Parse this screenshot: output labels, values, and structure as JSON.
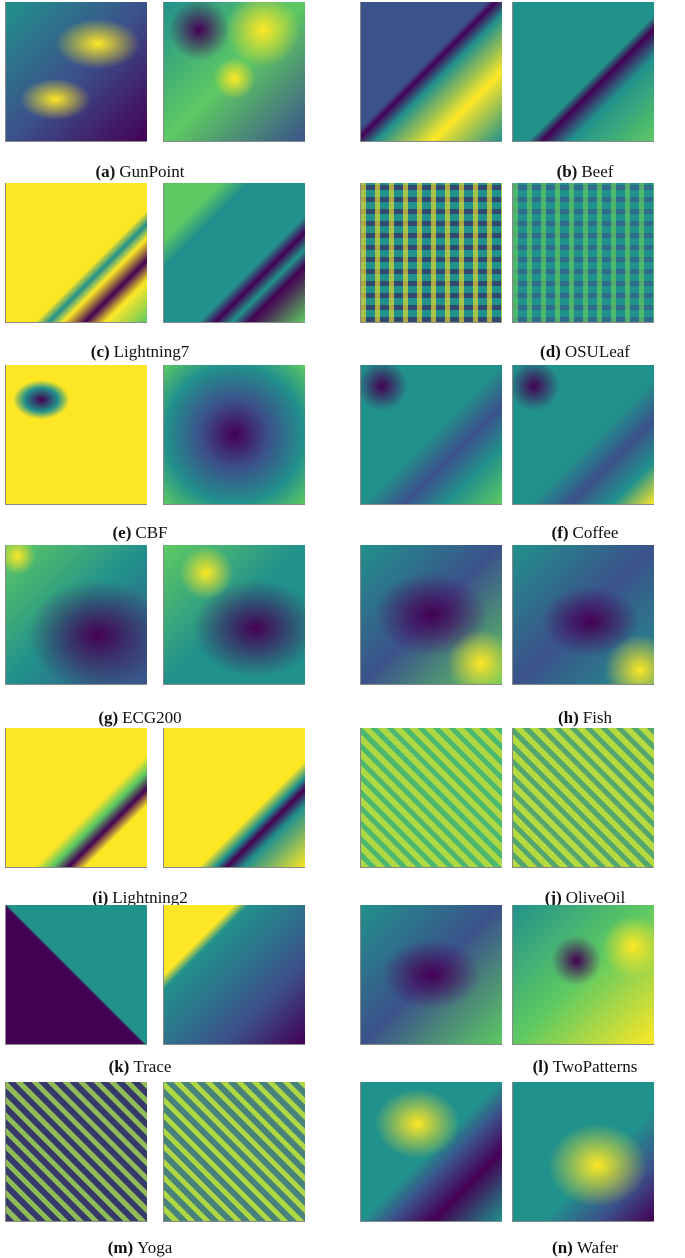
{
  "figure": {
    "panels": [
      {
        "label": "(a)",
        "name": "GunPoint"
      },
      {
        "label": "(b)",
        "name": "Beef"
      },
      {
        "label": "(c)",
        "name": "Lightning7"
      },
      {
        "label": "(d)",
        "name": "OSULeaf"
      },
      {
        "label": "(e)",
        "name": "CBF"
      },
      {
        "label": "(f)",
        "name": "Coffee"
      },
      {
        "label": "(g)",
        "name": "ECG200"
      },
      {
        "label": "(h)",
        "name": "Fish"
      },
      {
        "label": "(i)",
        "name": "Lightning2"
      },
      {
        "label": "(j)",
        "name": "OliveOil"
      },
      {
        "label": "(k)",
        "name": "Trace"
      },
      {
        "label": "(l)",
        "name": "TwoPatterns"
      },
      {
        "label": "(m)",
        "name": "Yoga"
      },
      {
        "label": "(n)",
        "name": "Wafer"
      }
    ]
  }
}
